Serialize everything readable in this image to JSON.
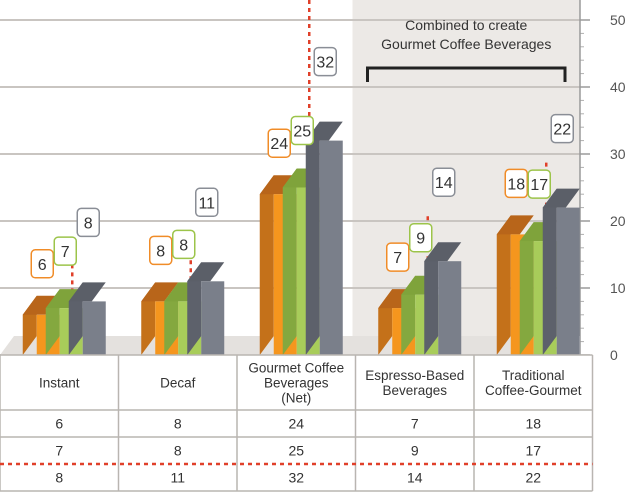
{
  "chart_data": {
    "type": "bar",
    "categories": [
      "Instant",
      "Decaf",
      "Gourmet Coffee\nBeverages\n(Net)",
      "Espresso-Based\nBeverages",
      "Traditional\nCoffee-Gourmet"
    ],
    "series": [
      {
        "values": [
          6,
          8,
          24,
          7,
          18
        ],
        "color": "#f5961e",
        "side_color": "#c4711a",
        "top_color": "#b8651a",
        "label_border": "#f08c28"
      },
      {
        "values": [
          7,
          8,
          25,
          9,
          17
        ],
        "color": "#a8cc5a",
        "side_color": "#84a83f",
        "top_color": "#7fa33b",
        "label_border": "#9cc44a"
      },
      {
        "values": [
          8,
          11,
          32,
          14,
          22
        ],
        "color": "#7a7f8a",
        "side_color": "#5d616b",
        "top_color": "#5b5f68",
        "label_border": "#8a8e96"
      }
    ],
    "ylim": [
      0,
      50
    ],
    "yticks": [
      0,
      10,
      20,
      30,
      40,
      50
    ],
    "grid": true,
    "annotation": "Combined to create\nGourmet Coffee Beverages",
    "highlight_categories": [
      3,
      4
    ],
    "highlight_color": "#ece9e6",
    "grid_color": "#c9c5c1",
    "dotted_line_color": "#e0402a"
  }
}
